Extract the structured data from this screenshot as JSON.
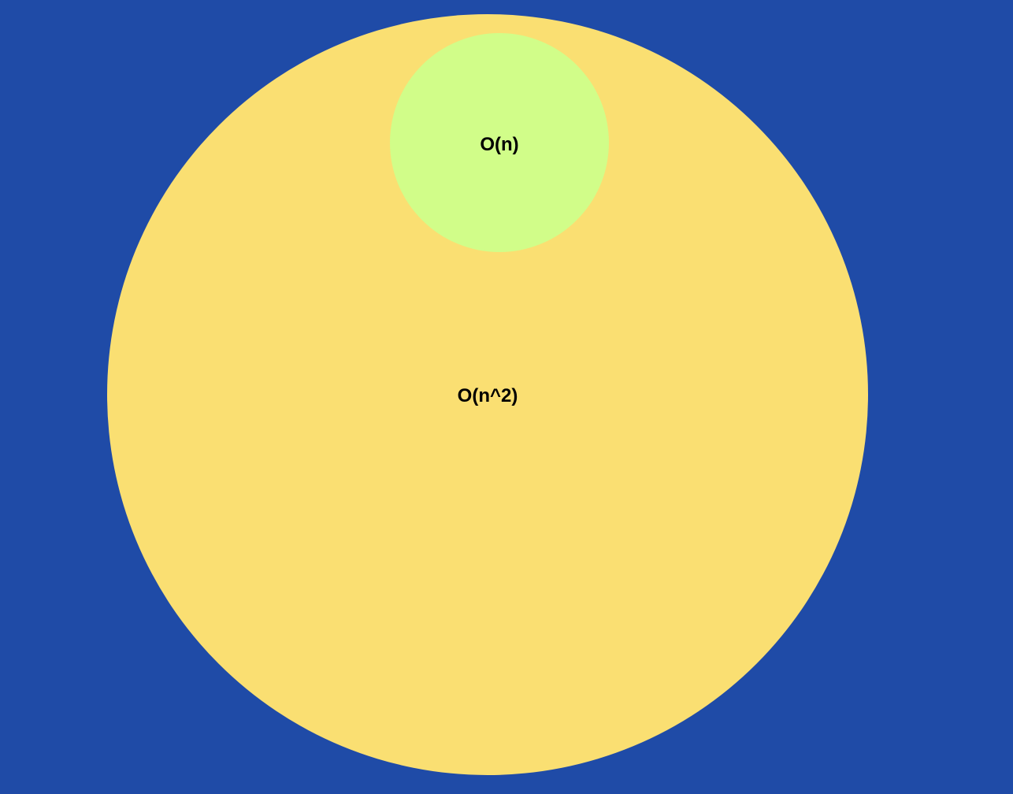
{
  "colors": {
    "background": "#1f4ba7",
    "outer_set": "#fadf72",
    "inner_set": "#d1fd89",
    "text": "#000000"
  },
  "sets": {
    "outer": {
      "label": "O(n^2)"
    },
    "inner": {
      "label": "O(n)"
    }
  }
}
